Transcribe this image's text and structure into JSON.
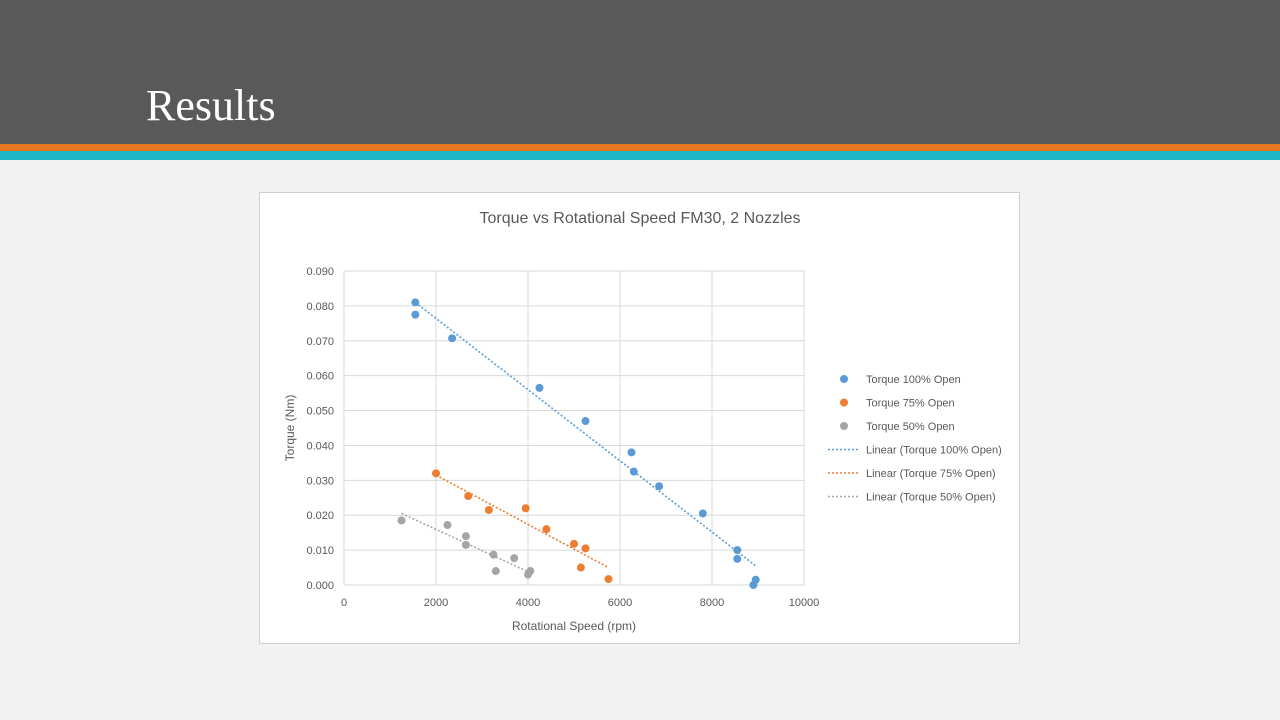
{
  "slide": {
    "title": "Results",
    "colors": {
      "header_bg": "#595959",
      "stripe_orange": "#e87722",
      "stripe_teal": "#1fb5c5"
    }
  },
  "chart_data": {
    "type": "scatter",
    "title": "Torque vs Rotational Speed FM30, 2 Nozzles",
    "xlabel": "Rotational Speed (rpm)",
    "ylabel": "Torque (Nm)",
    "xlim": [
      0,
      10000
    ],
    "ylim": [
      0,
      0.09
    ],
    "xticks": [
      0,
      2000,
      4000,
      6000,
      8000,
      10000
    ],
    "yticks": [
      "0.000",
      "0.010",
      "0.020",
      "0.030",
      "0.040",
      "0.050",
      "0.060",
      "0.070",
      "0.080",
      "0.090"
    ],
    "grid": true,
    "legend_position": "right",
    "series": [
      {
        "name": "Torque 100% Open",
        "color": "#5b9bd5",
        "x": [
          1550,
          1550,
          2350,
          4250,
          5250,
          6250,
          6300,
          6850,
          7800,
          8550,
          8550,
          8900,
          8950
        ],
        "y": [
          0.081,
          0.0775,
          0.0707,
          0.0565,
          0.047,
          0.038,
          0.0325,
          0.0283,
          0.0205,
          0.01,
          0.0075,
          0.0,
          0.0015
        ]
      },
      {
        "name": "Torque 75% Open",
        "color": "#ed7d31",
        "x": [
          2000,
          2700,
          3150,
          3950,
          4400,
          5000,
          5150,
          5250,
          5750
        ],
        "y": [
          0.032,
          0.0255,
          0.0215,
          0.022,
          0.016,
          0.0118,
          0.005,
          0.0105,
          0.0017
        ]
      },
      {
        "name": "Torque 50% Open",
        "color": "#a5a5a5",
        "x": [
          1250,
          2250,
          2650,
          2650,
          3250,
          3300,
          3700,
          4000,
          4050
        ],
        "y": [
          0.0185,
          0.0172,
          0.014,
          0.0115,
          0.0087,
          0.004,
          0.0077,
          0.003,
          0.004
        ]
      }
    ],
    "trendlines": [
      {
        "name": "Linear (Torque 100% Open)",
        "color": "#5b9bd5",
        "x": [
          1550,
          8950
        ],
        "y": [
          0.081,
          0.0055
        ]
      },
      {
        "name": "Linear (Torque 75% Open)",
        "color": "#ed7d31",
        "x": [
          2000,
          5750
        ],
        "y": [
          0.0315,
          0.005
        ]
      },
      {
        "name": "Linear (Torque 50% Open)",
        "color": "#a5a5a5",
        "x": [
          1250,
          4050
        ],
        "y": [
          0.0205,
          0.0035
        ]
      }
    ]
  }
}
